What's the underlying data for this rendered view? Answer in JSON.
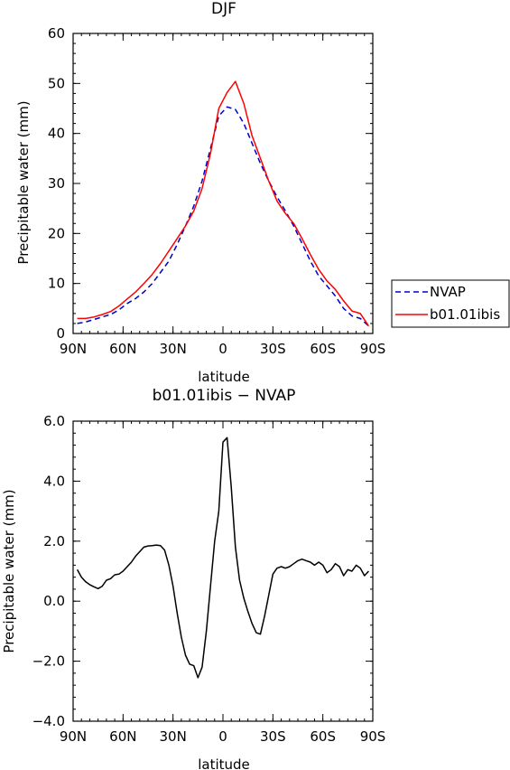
{
  "chart_data": [
    {
      "type": "line",
      "title": "DJF",
      "xlabel": "latitude",
      "ylabel": "Precipitable water (mm)",
      "x_ticks": [
        -90,
        -60,
        -30,
        0,
        30,
        60,
        90
      ],
      "x_tick_labels": [
        "90N",
        "60N",
        "30N",
        "0",
        "30S",
        "60S",
        "90S"
      ],
      "y_ticks": [
        0,
        10,
        20,
        30,
        40,
        50,
        60
      ],
      "y_tick_labels": [
        "0",
        "10",
        "20",
        "30",
        "40",
        "50",
        "60"
      ],
      "xlim": [
        -90,
        90
      ],
      "ylim": [
        0,
        60
      ],
      "legend_placement": "right",
      "x": [
        -87.5,
        -82.5,
        -77.5,
        -72.5,
        -67.5,
        -62.5,
        -57.5,
        -52.5,
        -47.5,
        -42.5,
        -37.5,
        -32.5,
        -27.5,
        -22.5,
        -17.5,
        -12.5,
        -7.5,
        -2.5,
        2.5,
        7.5,
        12.5,
        17.5,
        22.5,
        27.5,
        32.5,
        37.5,
        42.5,
        47.5,
        52.5,
        57.5,
        62.5,
        67.5,
        72.5,
        77.5,
        82.5,
        87.5
      ],
      "series": [
        {
          "name": "NVAP",
          "color": "#0000cc",
          "dash": "dashed",
          "values": [
            2.0,
            2.3,
            2.8,
            3.3,
            3.8,
            4.7,
            6.0,
            7.0,
            8.3,
            10.0,
            12.2,
            14.5,
            17.8,
            21.5,
            25.5,
            30.5,
            37.0,
            43.5,
            45.3,
            44.8,
            42.0,
            38.0,
            34.0,
            30.5,
            27.3,
            24.5,
            21.5,
            18.0,
            14.5,
            11.5,
            9.5,
            7.5,
            5.0,
            3.5,
            3.0,
            1.5
          ]
        },
        {
          "name": "b01.01ibis",
          "color": "#ff0000",
          "dash": "solid",
          "values": [
            3.0,
            3.0,
            3.3,
            3.8,
            4.4,
            5.5,
            6.9,
            8.3,
            10.0,
            11.8,
            14.0,
            16.5,
            19.0,
            21.5,
            24.5,
            29.0,
            36.0,
            45.0,
            48.2,
            50.4,
            46.0,
            39.5,
            35.0,
            30.5,
            26.5,
            24.0,
            22.0,
            19.0,
            15.8,
            12.8,
            10.5,
            8.8,
            6.5,
            4.5,
            4.0,
            1.5
          ]
        }
      ]
    },
    {
      "type": "line",
      "title": "b01.01ibis − NVAP",
      "xlabel": "latitude",
      "ylabel": "Precipitable water (mm)",
      "x_ticks": [
        -90,
        -60,
        -30,
        0,
        30,
        60,
        90
      ],
      "x_tick_labels": [
        "90N",
        "60N",
        "30N",
        "0",
        "30S",
        "60S",
        "90S"
      ],
      "y_ticks": [
        -4,
        -2,
        0,
        2,
        4,
        6
      ],
      "y_tick_labels": [
        "−4.0",
        "−2.0",
        "0.0",
        "2.0",
        "4.0",
        "6.0"
      ],
      "xlim": [
        -90,
        90
      ],
      "ylim": [
        -4,
        6
      ],
      "x": [
        -87.5,
        -85,
        -82.5,
        -80,
        -77.5,
        -75,
        -72.5,
        -70,
        -67.5,
        -65,
        -62.5,
        -60,
        -57.5,
        -55,
        -52.5,
        -50,
        -47.5,
        -45,
        -42.5,
        -40,
        -37.5,
        -35,
        -32.5,
        -30,
        -27.5,
        -25,
        -22.5,
        -20,
        -17.5,
        -15,
        -12.5,
        -10,
        -7.5,
        -5,
        -2.5,
        0,
        2.5,
        5,
        7.5,
        10,
        12.5,
        15,
        17.5,
        20,
        22.5,
        25,
        27.5,
        30,
        32.5,
        35,
        37.5,
        40,
        42.5,
        45,
        47.5,
        50,
        52.5,
        55,
        57.5,
        60,
        62.5,
        65,
        67.5,
        70,
        72.5,
        75,
        77.5,
        80,
        82.5,
        85,
        87.5
      ],
      "series": [
        {
          "color": "#000000",
          "dash": "solid",
          "values": [
            1.05,
            0.8,
            0.65,
            0.55,
            0.48,
            0.42,
            0.5,
            0.7,
            0.75,
            0.88,
            0.9,
            1.0,
            1.15,
            1.3,
            1.5,
            1.65,
            1.8,
            1.84,
            1.85,
            1.87,
            1.85,
            1.7,
            1.2,
            0.5,
            -0.4,
            -1.2,
            -1.8,
            -2.1,
            -2.15,
            -2.55,
            -2.2,
            -1.0,
            0.5,
            2.0,
            3.0,
            5.3,
            5.45,
            3.8,
            1.8,
            0.7,
            0.1,
            -0.35,
            -0.75,
            -1.05,
            -1.1,
            -0.5,
            0.2,
            0.9,
            1.1,
            1.15,
            1.1,
            1.15,
            1.25,
            1.35,
            1.4,
            1.35,
            1.3,
            1.2,
            1.3,
            1.2,
            0.95,
            1.05,
            1.25,
            1.15,
            0.85,
            1.05,
            1.0,
            1.2,
            1.1,
            0.85,
            1.0
          ]
        }
      ]
    }
  ]
}
